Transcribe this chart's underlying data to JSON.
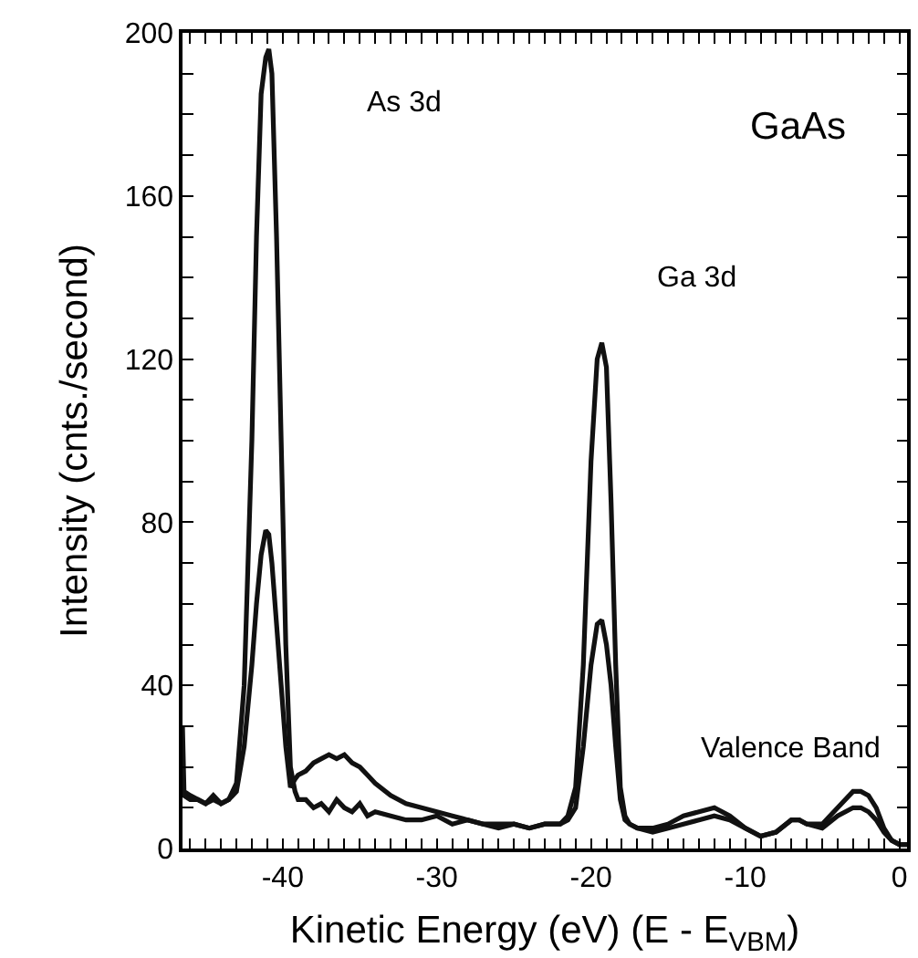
{
  "chart_data": {
    "type": "line",
    "xlabel": "Kinetic Energy (eV) (E - E$_{VBM}$)",
    "ylabel": "Intensity (cnts./second)",
    "x": [
      -46.5,
      -46.4,
      -46,
      -45.5,
      -45,
      -44.5,
      -44,
      -43.5,
      -43,
      -42.5,
      -42,
      -41.7,
      -41.4,
      -41.1,
      -40.9,
      -40.7,
      -40.4,
      -40.1,
      -39.8,
      -39.5,
      -39.2,
      -39,
      -38.5,
      -38,
      -37.5,
      -37,
      -36.5,
      -36,
      -35.5,
      -35,
      -34.5,
      -34,
      -33,
      -32,
      -31,
      -30,
      -29,
      -28,
      -27,
      -26,
      -25,
      -24,
      -23,
      -22,
      -21.5,
      -21,
      -20.5,
      -20,
      -19.6,
      -19.3,
      -19,
      -18.7,
      -18.4,
      -18.1,
      -17.8,
      -17.5,
      -17,
      -16,
      -15,
      -14,
      -13,
      -12,
      -11,
      -10,
      -9,
      -8,
      -7,
      -6.5,
      -6,
      -5,
      -4,
      -3,
      -2.5,
      -2,
      -1.5,
      -1,
      -0.5,
      0,
      0.5
    ],
    "series": [
      {
        "color": "#111111",
        "values": [
          30,
          14,
          13,
          12,
          11,
          13,
          11,
          12,
          16,
          40,
          100,
          150,
          185,
          194,
          196,
          190,
          150,
          100,
          50,
          20,
          14,
          12,
          12,
          10,
          11,
          9,
          12,
          10,
          9,
          11,
          8,
          9,
          8,
          7,
          7,
          8,
          6,
          7,
          6,
          5,
          6,
          5,
          6,
          6,
          8,
          15,
          45,
          95,
          120,
          124,
          118,
          85,
          45,
          15,
          8,
          6,
          5,
          5,
          6,
          8,
          9,
          10,
          8,
          5,
          3,
          4,
          7,
          7,
          6,
          6,
          10,
          14,
          14,
          13,
          10,
          5,
          2,
          1,
          1
        ]
      },
      {
        "color": "#111111",
        "values": [
          14,
          13,
          12,
          12,
          11,
          12,
          11,
          12,
          14,
          25,
          45,
          60,
          72,
          78,
          77,
          70,
          55,
          40,
          25,
          15,
          17,
          18,
          19,
          21,
          22,
          23,
          22,
          23,
          21,
          20,
          18,
          16,
          13,
          11,
          10,
          9,
          8,
          7,
          6,
          6,
          6,
          5,
          6,
          6,
          7,
          10,
          25,
          45,
          55,
          56,
          50,
          40,
          25,
          12,
          7,
          6,
          5,
          4,
          5,
          6,
          7,
          8,
          7,
          5,
          3,
          4,
          7,
          7,
          6,
          5,
          8,
          10,
          10,
          9,
          7,
          4,
          2,
          1,
          1
        ]
      }
    ],
    "annotations": [
      "As 3d",
      "GaAs",
      "Ga 3d",
      "Valence Band"
    ],
    "xlim": [
      -46.5,
      0.5
    ],
    "ylim": [
      0,
      200
    ],
    "xticks": [
      {
        "value": -46,
        "label": null
      },
      {
        "value": -45,
        "label": null
      },
      {
        "value": -44,
        "label": null
      },
      {
        "value": -43,
        "label": null
      },
      {
        "value": -42,
        "label": null
      },
      {
        "value": -41,
        "label": null
      },
      -40,
      {
        "value": -39,
        "label": null
      },
      {
        "value": -38,
        "label": null
      },
      {
        "value": -37,
        "label": null
      },
      {
        "value": -36,
        "label": null
      },
      {
        "value": -35,
        "label": null
      },
      {
        "value": -34,
        "label": null
      },
      {
        "value": -33,
        "label": null
      },
      {
        "value": -32,
        "label": null
      },
      {
        "value": -31,
        "label": null
      },
      -30,
      {
        "value": -29,
        "label": null
      },
      {
        "value": -28,
        "label": null
      },
      {
        "value": -27,
        "label": null
      },
      {
        "value": -26,
        "label": null
      },
      {
        "value": -25,
        "label": null
      },
      {
        "value": -24,
        "label": null
      },
      {
        "value": -23,
        "label": null
      },
      {
        "value": -22,
        "label": null
      },
      {
        "value": -21,
        "label": null
      },
      -20,
      {
        "value": -19,
        "label": null
      },
      {
        "value": -18,
        "label": null
      },
      {
        "value": -17,
        "label": null
      },
      {
        "value": -16,
        "label": null
      },
      {
        "value": -15,
        "label": null
      },
      {
        "value": -14,
        "label": null
      },
      {
        "value": -13,
        "label": null
      },
      {
        "value": -12,
        "label": null
      },
      {
        "value": -11,
        "label": null
      },
      -10,
      {
        "value": -9,
        "label": null
      },
      {
        "value": -8,
        "label": null
      },
      {
        "value": -7,
        "label": null
      },
      {
        "value": -6,
        "label": null
      },
      {
        "value": -5,
        "label": null
      },
      {
        "value": -4,
        "label": null
      },
      {
        "value": -3,
        "label": null
      },
      {
        "value": -2,
        "label": null
      },
      {
        "value": -1,
        "label": null
      },
      0
    ],
    "yticks": [
      0,
      {
        "value": 10,
        "label": null
      },
      {
        "value": 20,
        "label": null
      },
      {
        "value": 30,
        "label": null
      },
      40,
      {
        "value": 50,
        "label": null
      },
      {
        "value": 60,
        "label": null
      },
      {
        "value": 70,
        "label": null
      },
      80,
      {
        "value": 90,
        "label": null
      },
      {
        "value": 100,
        "label": null
      },
      {
        "value": 110,
        "label": null
      },
      120,
      {
        "value": 130,
        "label": null
      },
      {
        "value": 140,
        "label": null
      },
      {
        "value": 150,
        "label": null
      },
      160,
      {
        "value": 170,
        "label": null
      },
      {
        "value": 180,
        "label": null
      },
      {
        "value": 190,
        "label": null
      },
      200
    ],
    "grid": false,
    "marker": "none",
    "line_style": "solid"
  }
}
